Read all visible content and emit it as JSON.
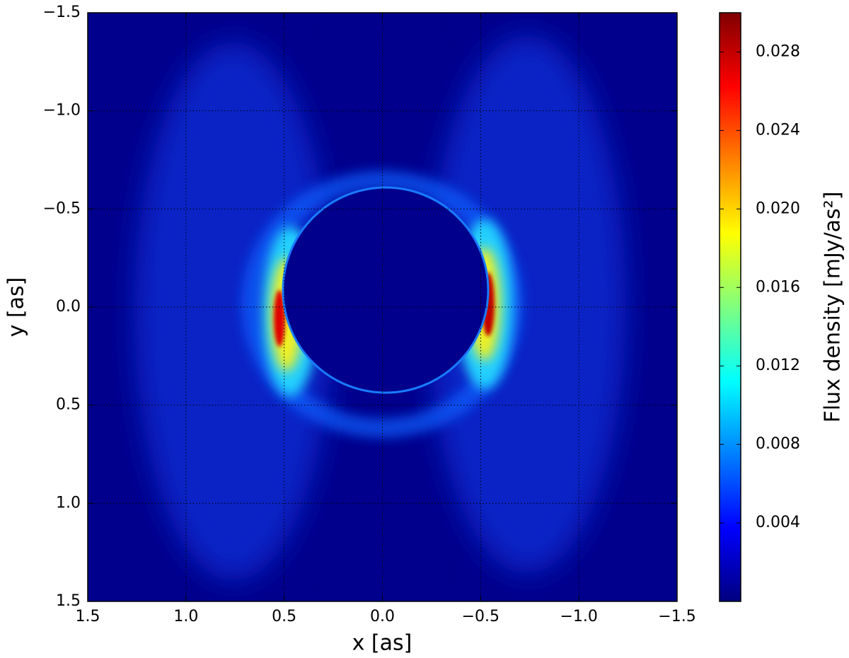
{
  "chart_data": {
    "type": "heatmap",
    "xlabel": "x [as]",
    "ylabel": "y [as]",
    "xlim": [
      1.5,
      -1.5
    ],
    "ylim": [
      1.5,
      -1.5
    ],
    "xticks": [
      1.5,
      {
        "value": 1,
        "label": "1.0"
      },
      0.5,
      {
        "value": 0,
        "label": "0.0"
      },
      {
        "value": -0.5,
        "label": "−0.5"
      },
      {
        "value": -1,
        "label": "−1.0"
      },
      {
        "value": -1.5,
        "label": "−1.5"
      }
    ],
    "yticks": [
      {
        "value": -1.5,
        "label": "−1.5"
      },
      {
        "value": -1,
        "label": "−1.0"
      },
      {
        "value": -0.5,
        "label": "−0.5"
      },
      {
        "value": 0,
        "label": "0.0"
      },
      0.5,
      {
        "value": 1,
        "label": "1.0"
      },
      1.5
    ],
    "grid": true,
    "colorbar": {
      "label": "Flux density [mJy/as²]",
      "lim": [
        0,
        0.03
      ],
      "ticks": [
        0.004,
        0.008,
        0.012,
        0.016,
        {
          "value": 0.02,
          "label": "0.020"
        },
        0.024,
        0.028
      ]
    }
  }
}
